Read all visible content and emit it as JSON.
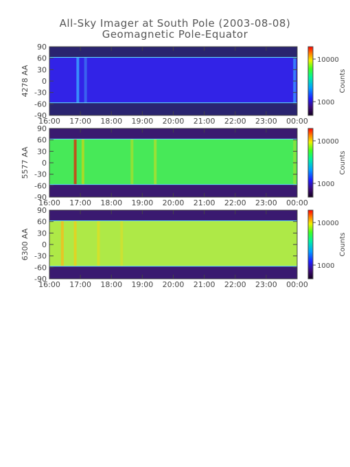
{
  "title_line1": "All-Sky Imager at South Pole (2003-08-08)",
  "title_line2": "Geomagnetic Pole-Equator",
  "colorbar_label": "Counts",
  "chart_data": [
    {
      "type": "heatmap",
      "ylabel": "4278 AA",
      "x_ticks": [
        "16:00",
        "17:00",
        "18:00",
        "19:00",
        "20:00",
        "21:00",
        "22:00",
        "23:00",
        "00:00"
      ],
      "y_ticks": [
        90,
        60,
        30,
        0,
        -30,
        -60,
        -90
      ],
      "ylim": [
        -90,
        90
      ],
      "colorbar_ticks": [
        "10000",
        "1000"
      ],
      "field_band_lat": [
        -57,
        62
      ],
      "base_color": "#2e28f2",
      "edge_color": "#2a2470",
      "stripes": [
        {
          "time": "16:55",
          "color": "#3aa0ff"
        },
        {
          "time": "17:10",
          "color": "#3c6cf0"
        },
        {
          "time": "23:55",
          "color": "#3a8cff"
        }
      ]
    },
    {
      "type": "heatmap",
      "ylabel": "5577 AA",
      "x_ticks": [
        "16:00",
        "17:00",
        "18:00",
        "19:00",
        "20:00",
        "21:00",
        "22:00",
        "23:00",
        "00:00"
      ],
      "y_ticks": [
        90,
        60,
        30,
        0,
        -30,
        -60,
        -90
      ],
      "ylim": [
        -90,
        90
      ],
      "colorbar_ticks": [
        "10000",
        "1000"
      ],
      "field_band_lat": [
        -57,
        62
      ],
      "base_color": "#38e84a",
      "edge_color": "#3a1a70",
      "stripes": [
        {
          "time": "16:50",
          "color": "#d23a10"
        },
        {
          "time": "17:05",
          "color": "#b8d820"
        },
        {
          "time": "18:40",
          "color": "#9ee030"
        },
        {
          "time": "19:25",
          "color": "#a8e030"
        },
        {
          "time": "23:55",
          "color": "#90e03c"
        }
      ]
    },
    {
      "type": "heatmap",
      "ylabel": "6300 AA",
      "x_ticks": [
        "16:00",
        "17:00",
        "18:00",
        "19:00",
        "20:00",
        "21:00",
        "22:00",
        "23:00",
        "00:00"
      ],
      "y_ticks": [
        90,
        60,
        30,
        0,
        -30,
        -60,
        -90
      ],
      "ylim": [
        -90,
        90
      ],
      "colorbar_ticks": [
        "10000",
        "1000"
      ],
      "field_band_lat": [
        -57,
        62
      ],
      "base_color": "#a8e838",
      "edge_color": "#3a1a70",
      "stripes": [
        {
          "time": "16:25",
          "color": "#f0c020"
        },
        {
          "time": "16:50",
          "color": "#e8d020"
        },
        {
          "time": "17:35",
          "color": "#d8e028"
        },
        {
          "time": "18:20",
          "color": "#d0e030"
        }
      ]
    }
  ]
}
